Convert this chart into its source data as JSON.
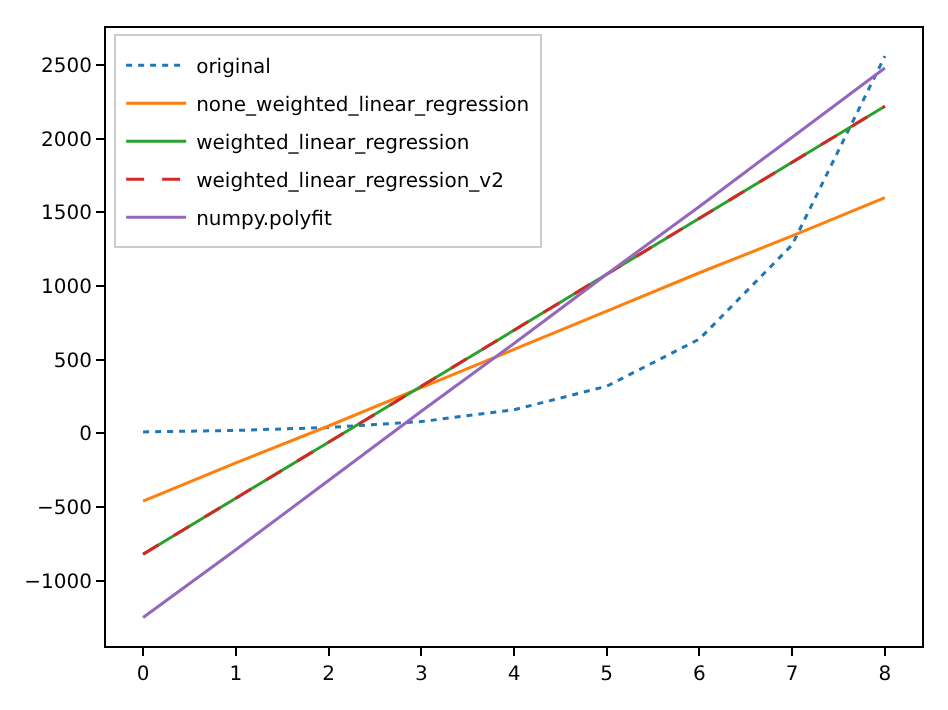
{
  "chart_data": {
    "type": "line",
    "x": [
      0,
      1,
      2,
      3,
      4,
      5,
      6,
      7,
      8
    ],
    "series": [
      {
        "name": "original",
        "color": "#1f77b4",
        "line_style": "dotted",
        "values": [
          10,
          20,
          40,
          80,
          160,
          320,
          640,
          1280,
          2560
        ]
      },
      {
        "name": "none_weighted_linear_regression",
        "color": "#ff7f0e",
        "line_style": "solid",
        "values": [
          -460,
          -200,
          50,
          310,
          570,
          830,
          1090,
          1340,
          1600
        ]
      },
      {
        "name": "weighted_linear_regression",
        "color": "#2ca02c",
        "line_style": "solid",
        "values": [
          -820,
          -440,
          -60,
          320,
          700,
          1080,
          1460,
          1840,
          2220
        ]
      },
      {
        "name": "weighted_linear_regression_v2",
        "color": "#d62728",
        "line_style": "dashed",
        "values": [
          -820,
          -440,
          -60,
          320,
          700,
          1080,
          1460,
          1840,
          2220
        ]
      },
      {
        "name": "numpy.polyfit",
        "color": "#9467bd",
        "line_style": "solid",
        "values": [
          -1250,
          -790,
          -320,
          150,
          610,
          1080,
          1540,
          2010,
          2480
        ]
      }
    ],
    "xlim": [
      -0.4,
      8.4
    ],
    "xticks": [
      0,
      1,
      2,
      3,
      4,
      5,
      6,
      7,
      8
    ],
    "ylim": [
      -1443,
      2751
    ],
    "yticks": [
      {
        "value": -1000,
        "label": "−1000"
      },
      {
        "value": -500,
        "label": "−500"
      },
      0,
      500,
      1000,
      1500,
      2000,
      2500
    ],
    "legend": "top left",
    "marker": "none"
  }
}
